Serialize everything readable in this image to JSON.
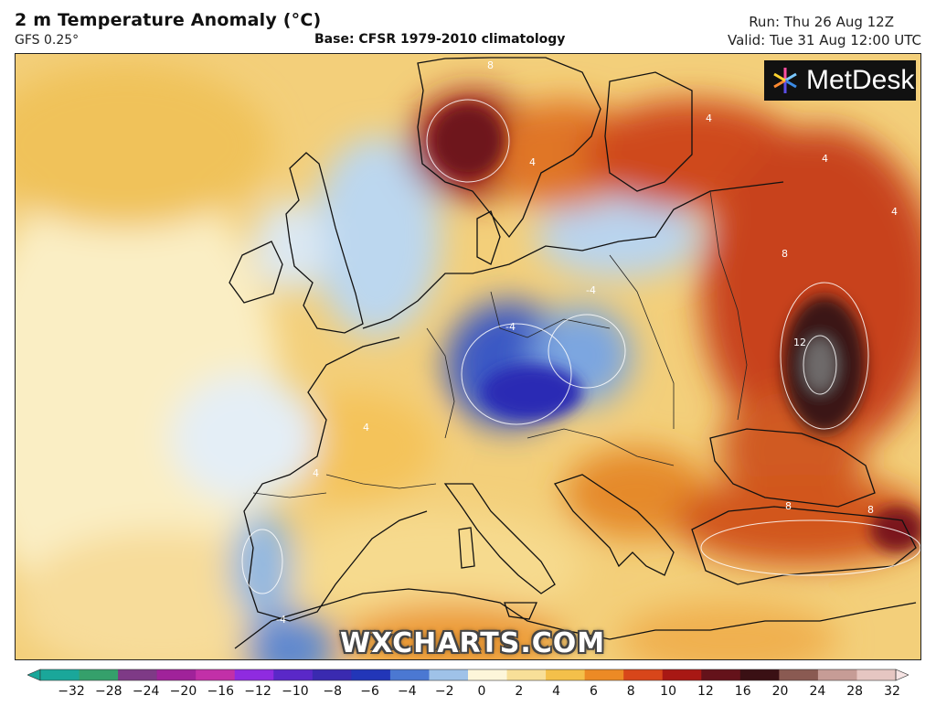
{
  "header": {
    "title": "2 m Temperature Anomaly (°C)",
    "model": "GFS 0.25°",
    "base": "Base: CFSR 1979-2010 climatology",
    "run": "Run: Thu 26 Aug 12Z",
    "valid": "Valid: Tue 31 Aug 12:00 UTC"
  },
  "branding": {
    "logo": "MetDesk",
    "watermark": "WXCHARTS.COM"
  },
  "map": {
    "variable": "2 m temperature anomaly",
    "region": "Europe",
    "contour_labels": [
      {
        "value": "8"
      },
      {
        "value": "4"
      },
      {
        "value": "4"
      },
      {
        "value": "4"
      },
      {
        "value": "8"
      },
      {
        "value": "12"
      },
      {
        "value": "-4"
      },
      {
        "value": "-4"
      },
      {
        "value": "4"
      },
      {
        "value": "4"
      },
      {
        "value": "8"
      },
      {
        "value": "8"
      },
      {
        "value": "4"
      },
      {
        "value": "-4"
      }
    ]
  },
  "legend": {
    "ticks": [
      "−32",
      "−28",
      "−24",
      "−20",
      "−16",
      "−12",
      "−10",
      "−8",
      "−6",
      "−4",
      "−2",
      "0",
      "2",
      "4",
      "6",
      "8",
      "10",
      "12",
      "16",
      "20",
      "24",
      "28",
      "32"
    ],
    "colors": [
      "#1aa79a",
      "#35a06b",
      "#7e3a86",
      "#a0229a",
      "#c230a8",
      "#8f2be0",
      "#5a28c8",
      "#3a2ab0",
      "#2236b8",
      "#4b78d2",
      "#9fc2e8",
      "#fdf6da",
      "#f8df98",
      "#f4c04a",
      "#ec8a25",
      "#d8461a",
      "#a81814",
      "#64121a",
      "#3a1014",
      "#8a5a52",
      "#c69c96",
      "#e6c6c2",
      "#f6e4e4"
    ]
  }
}
